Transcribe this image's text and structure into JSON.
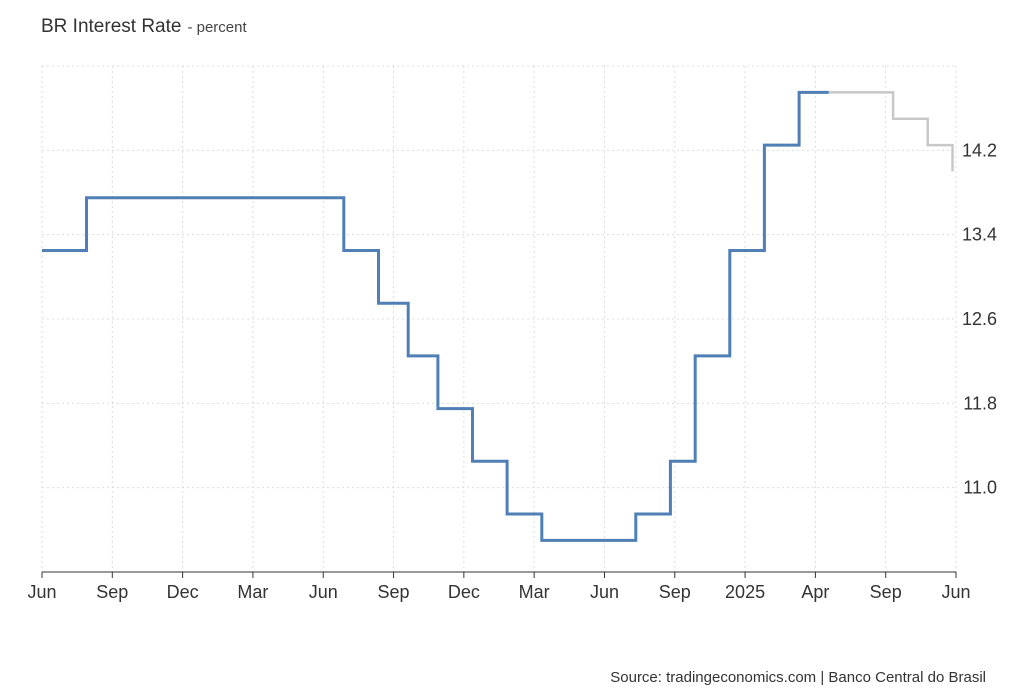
{
  "title": "BR Interest Rate",
  "subtitle": "- percent",
  "source": "Source: tradingeconomics.com | Banco Central do Brasil",
  "chart_data": {
    "type": "line",
    "step": true,
    "title": "BR Interest Rate",
    "unit": "percent",
    "x_tick_labels": [
      "Jun",
      "Sep",
      "Dec",
      "Mar",
      "Jun",
      "Sep",
      "Dec",
      "Mar",
      "Jun",
      "Sep",
      "2025",
      "Apr",
      "Sep",
      "Jun"
    ],
    "y_ticks": [
      11.0,
      11.8,
      12.6,
      13.4,
      14.2
    ],
    "y_tick_labels": [
      "11.0",
      "11.8",
      "12.6",
      "13.4",
      "14.2"
    ],
    "xlim": [
      "2022-06-01",
      "2025-12-15"
    ],
    "ylim": [
      10.2,
      15.0
    ],
    "grid": true,
    "y_axis_position": "right",
    "series": [
      {
        "color": "#4f7fb5",
        "points": [
          {
            "x": "2022-06-01",
            "y": 13.25
          },
          {
            "x": "2022-08-03",
            "y": 13.75
          },
          {
            "x": "2023-08-02",
            "y": 13.25
          },
          {
            "x": "2023-09-20",
            "y": 12.75
          },
          {
            "x": "2023-11-01",
            "y": 12.25
          },
          {
            "x": "2023-12-13",
            "y": 11.75
          },
          {
            "x": "2024-01-31",
            "y": 11.25
          },
          {
            "x": "2024-03-20",
            "y": 10.75
          },
          {
            "x": "2024-05-08",
            "y": 10.5
          },
          {
            "x": "2024-09-18",
            "y": 10.75
          },
          {
            "x": "2024-11-06",
            "y": 11.25
          },
          {
            "x": "2024-12-11",
            "y": 12.25
          },
          {
            "x": "2025-01-29",
            "y": 13.25
          },
          {
            "x": "2025-03-19",
            "y": 14.25
          },
          {
            "x": "2025-05-07",
            "y": 14.75
          },
          {
            "x": "2025-06-18",
            "y": 14.75
          }
        ]
      },
      {
        "color": "#c8c8c8",
        "forecast": true,
        "points": [
          {
            "x": "2025-06-18",
            "y": 14.75
          },
          {
            "x": "2025-09-17",
            "y": 14.5
          },
          {
            "x": "2025-11-05",
            "y": 14.25
          },
          {
            "x": "2025-12-10",
            "y": 14.0
          }
        ]
      }
    ]
  }
}
